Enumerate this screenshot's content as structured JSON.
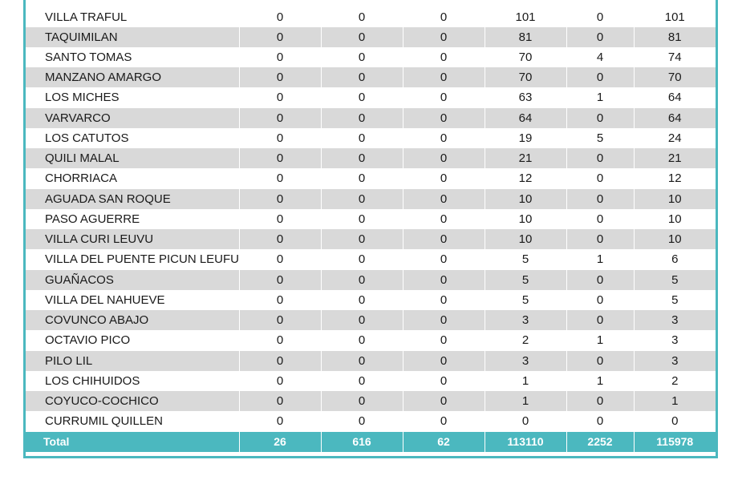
{
  "rows": [
    {
      "name": "VILLA TRAFUL",
      "c1": "0",
      "c2": "0",
      "c3": "0",
      "c4": "101",
      "c5": "0",
      "c6": "101"
    },
    {
      "name": "TAQUIMILAN",
      "c1": "0",
      "c2": "0",
      "c3": "0",
      "c4": "81",
      "c5": "0",
      "c6": "81"
    },
    {
      "name": "SANTO TOMAS",
      "c1": "0",
      "c2": "0",
      "c3": "0",
      "c4": "70",
      "c5": "4",
      "c6": "74"
    },
    {
      "name": "MANZANO AMARGO",
      "c1": "0",
      "c2": "0",
      "c3": "0",
      "c4": "70",
      "c5": "0",
      "c6": "70"
    },
    {
      "name": "LOS MICHES",
      "c1": "0",
      "c2": "0",
      "c3": "0",
      "c4": "63",
      "c5": "1",
      "c6": "64"
    },
    {
      "name": "VARVARCO",
      "c1": "0",
      "c2": "0",
      "c3": "0",
      "c4": "64",
      "c5": "0",
      "c6": "64"
    },
    {
      "name": "LOS CATUTOS",
      "c1": "0",
      "c2": "0",
      "c3": "0",
      "c4": "19",
      "c5": "5",
      "c6": "24"
    },
    {
      "name": "QUILI MALAL",
      "c1": "0",
      "c2": "0",
      "c3": "0",
      "c4": "21",
      "c5": "0",
      "c6": "21"
    },
    {
      "name": "CHORRIACA",
      "c1": "0",
      "c2": "0",
      "c3": "0",
      "c4": "12",
      "c5": "0",
      "c6": "12"
    },
    {
      "name": "AGUADA SAN ROQUE",
      "c1": "0",
      "c2": "0",
      "c3": "0",
      "c4": "10",
      "c5": "0",
      "c6": "10"
    },
    {
      "name": "PASO AGUERRE",
      "c1": "0",
      "c2": "0",
      "c3": "0",
      "c4": "10",
      "c5": "0",
      "c6": "10"
    },
    {
      "name": "VILLA CURI LEUVU",
      "c1": "0",
      "c2": "0",
      "c3": "0",
      "c4": "10",
      "c5": "0",
      "c6": "10"
    },
    {
      "name": "VILLA DEL PUENTE PICUN LEUFU",
      "c1": "0",
      "c2": "0",
      "c3": "0",
      "c4": "5",
      "c5": "1",
      "c6": "6"
    },
    {
      "name": "GUAÑACOS",
      "c1": "0",
      "c2": "0",
      "c3": "0",
      "c4": "5",
      "c5": "0",
      "c6": "5"
    },
    {
      "name": "VILLA DEL NAHUEVE",
      "c1": "0",
      "c2": "0",
      "c3": "0",
      "c4": "5",
      "c5": "0",
      "c6": "5"
    },
    {
      "name": "COVUNCO ABAJO",
      "c1": "0",
      "c2": "0",
      "c3": "0",
      "c4": "3",
      "c5": "0",
      "c6": "3"
    },
    {
      "name": "OCTAVIO PICO",
      "c1": "0",
      "c2": "0",
      "c3": "0",
      "c4": "2",
      "c5": "1",
      "c6": "3"
    },
    {
      "name": "PILO LIL",
      "c1": "0",
      "c2": "0",
      "c3": "0",
      "c4": "3",
      "c5": "0",
      "c6": "3"
    },
    {
      "name": "LOS CHIHUIDOS",
      "c1": "0",
      "c2": "0",
      "c3": "0",
      "c4": "1",
      "c5": "1",
      "c6": "2"
    },
    {
      "name": "COYUCO-COCHICO",
      "c1": "0",
      "c2": "0",
      "c3": "0",
      "c4": "1",
      "c5": "0",
      "c6": "1"
    },
    {
      "name": "CURRUMIL QUILLEN",
      "c1": "0",
      "c2": "0",
      "c3": "0",
      "c4": "0",
      "c5": "0",
      "c6": "0"
    }
  ],
  "total": {
    "label": "Total",
    "c1": "26",
    "c2": "616",
    "c3": "62",
    "c4": "113110",
    "c5": "2252",
    "c6": "115978"
  },
  "colors": {
    "accent": "#4bb8bf",
    "row_alt": "#d9d9d9"
  }
}
